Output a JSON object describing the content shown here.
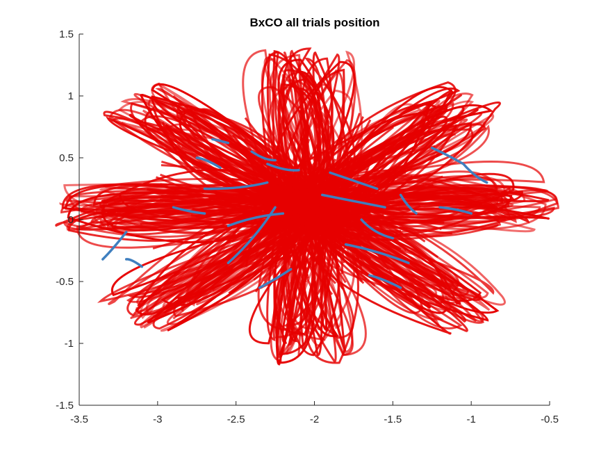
{
  "chart_data": {
    "type": "line",
    "title": "BxCO all trials position",
    "xlabel": "",
    "ylabel": "",
    "xlim": [
      -3.5,
      -0.5
    ],
    "ylim": [
      -1.5,
      1.5
    ],
    "xticks": [
      "-3.5",
      "-3",
      "-2.5",
      "-2",
      "-1.5",
      "-1",
      "-0.5"
    ],
    "yticks": [
      "1.5",
      "1",
      "0.5",
      "0",
      "-0.5",
      "-1",
      "-1.5"
    ],
    "grid": false,
    "colors": {
      "red": "#e60000",
      "blue": "#3f7fbf"
    },
    "center": [
      -2.05,
      0.1
    ],
    "red_lobes_angles_deg": [
      0,
      45,
      90,
      135,
      180,
      225,
      270,
      315
    ],
    "series": [
      {
        "color": "red",
        "values": [
          [
            -2.05,
            0.1
          ],
          [
            -0.78,
            0.0
          ],
          [
            -2.05,
            0.1
          ],
          [
            -1.25,
            0.95
          ],
          [
            -2.05,
            0.1
          ],
          [
            -2.1,
            1.3
          ],
          [
            -2.05,
            0.1
          ],
          [
            -2.9,
            1.0
          ],
          [
            -2.05,
            0.1
          ],
          [
            -3.35,
            0.1
          ],
          [
            -2.05,
            0.1
          ],
          [
            -2.9,
            -0.8
          ],
          [
            -2.05,
            0.1
          ],
          [
            -2.1,
            -1.1
          ],
          [
            -2.05,
            0.1
          ],
          [
            -1.3,
            -0.75
          ]
        ]
      },
      {
        "color": "blue",
        "values": [
          [
            -3.35,
            -0.32
          ],
          [
            -3.2,
            -0.1
          ]
        ]
      },
      {
        "color": "blue",
        "values": [
          [
            -3.2,
            -0.32
          ],
          [
            -3.1,
            -0.38
          ]
        ]
      },
      {
        "color": "blue",
        "values": [
          [
            -1.25,
            0.58
          ],
          [
            -1.05,
            0.45
          ],
          [
            -0.9,
            0.3
          ]
        ]
      },
      {
        "color": "blue",
        "values": [
          [
            -2.65,
            0.65
          ],
          [
            -2.55,
            0.62
          ]
        ]
      },
      {
        "color": "blue",
        "values": [
          [
            -2.55,
            -0.35
          ],
          [
            -2.25,
            0.1
          ]
        ]
      },
      {
        "color": "blue",
        "values": [
          [
            -2.7,
            0.25
          ],
          [
            -2.3,
            0.3
          ]
        ]
      },
      {
        "color": "blue",
        "values": [
          [
            -2.55,
            -0.05
          ],
          [
            -2.2,
            0.05
          ]
        ]
      },
      {
        "color": "blue",
        "values": [
          [
            -1.95,
            0.2
          ],
          [
            -1.55,
            0.1
          ]
        ]
      },
      {
        "color": "blue",
        "values": [
          [
            -1.9,
            0.38
          ],
          [
            -1.6,
            0.25
          ]
        ]
      },
      {
        "color": "blue",
        "values": [
          [
            -2.3,
            0.45
          ],
          [
            -2.1,
            0.4
          ]
        ]
      },
      {
        "color": "blue",
        "values": [
          [
            -1.8,
            -0.2
          ],
          [
            -1.4,
            -0.35
          ]
        ]
      },
      {
        "color": "blue",
        "values": [
          [
            -1.45,
            0.2
          ],
          [
            -1.35,
            0.05
          ]
        ]
      },
      {
        "color": "blue",
        "values": [
          [
            -2.4,
            0.55
          ],
          [
            -2.25,
            0.48
          ]
        ]
      },
      {
        "color": "blue",
        "values": [
          [
            -1.7,
            0.0
          ],
          [
            -1.5,
            -0.15
          ]
        ]
      },
      {
        "color": "blue",
        "values": [
          [
            -2.35,
            -0.55
          ],
          [
            -2.15,
            -0.4
          ]
        ]
      },
      {
        "color": "blue",
        "values": [
          [
            -1.2,
            0.1
          ],
          [
            -1.0,
            0.05
          ]
        ]
      },
      {
        "color": "blue",
        "values": [
          [
            -2.9,
            0.1
          ],
          [
            -2.7,
            0.05
          ]
        ]
      },
      {
        "color": "blue",
        "values": [
          [
            -1.65,
            -0.45
          ],
          [
            -1.45,
            -0.55
          ]
        ]
      },
      {
        "color": "blue",
        "values": [
          [
            -2.75,
            0.5
          ],
          [
            -2.6,
            0.42
          ]
        ]
      }
    ]
  }
}
